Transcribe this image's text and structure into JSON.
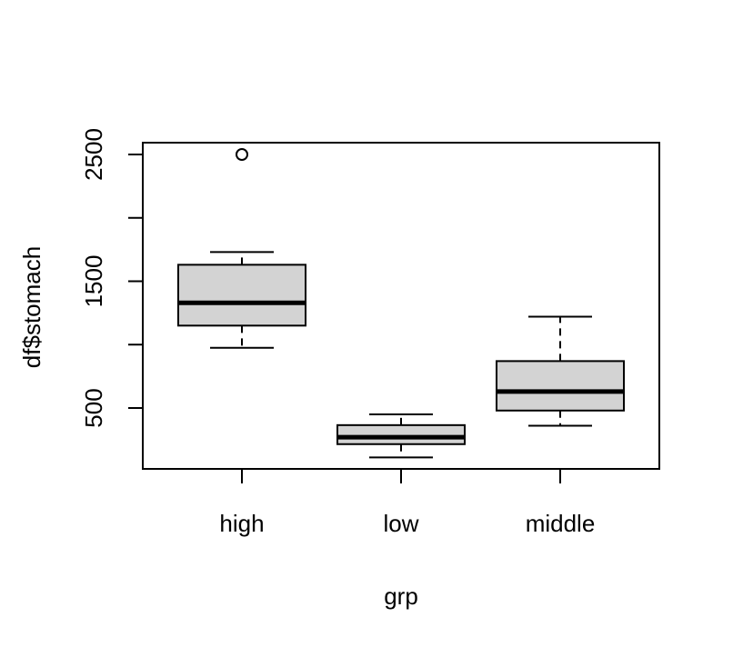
{
  "chart_data": {
    "type": "boxplot",
    "xlabel": "grp",
    "ylabel": "df$stomach",
    "y_ticks": [
      500,
      1000,
      1500,
      2000,
      2500
    ],
    "y_tick_labels": [
      "500",
      "",
      "1500",
      "",
      "2500"
    ],
    "ylim": [
      25,
      2590
    ],
    "categories": [
      "high",
      "low",
      "middle"
    ],
    "boxes": [
      {
        "name": "high",
        "whisker_low": 975,
        "q1": 1150,
        "median": 1330,
        "q3": 1630,
        "whisker_high": 1730,
        "outliers": [
          2500
        ]
      },
      {
        "name": "low",
        "whisker_low": 110,
        "q1": 215,
        "median": 270,
        "q3": 365,
        "whisker_high": 450,
        "outliers": []
      },
      {
        "name": "middle",
        "whisker_low": 360,
        "q1": 480,
        "median": 630,
        "q3": 870,
        "whisker_high": 1220,
        "outliers": []
      }
    ],
    "box_fill": "#d3d3d3",
    "grid": false
  }
}
